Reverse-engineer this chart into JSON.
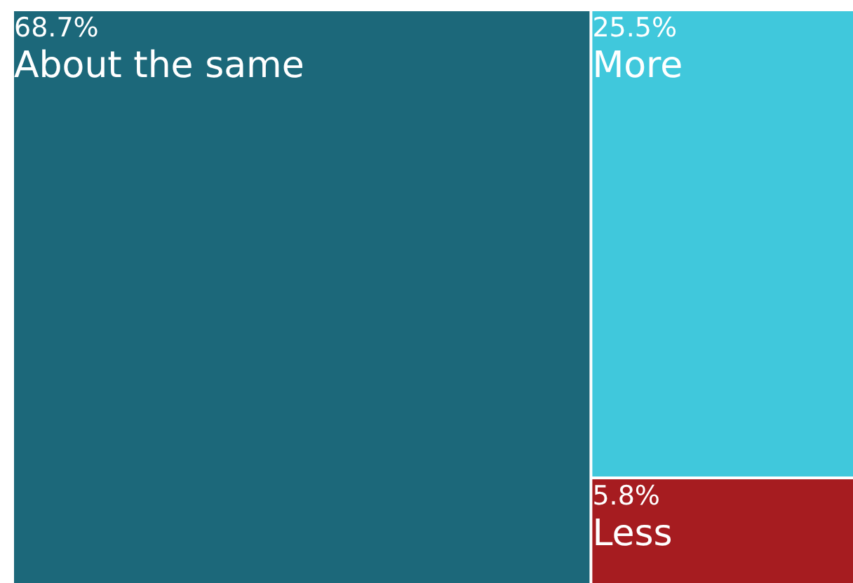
{
  "chart_data": {
    "type": "other",
    "categories": [
      "About the same",
      "More",
      "Less"
    ],
    "values": [
      68.7,
      25.5,
      5.8
    ],
    "value_labels": [
      "68.7%",
      "25.5%",
      "5.8%"
    ],
    "colors": [
      "#1c687a",
      "#40c8dc",
      "#a61c20"
    ]
  }
}
